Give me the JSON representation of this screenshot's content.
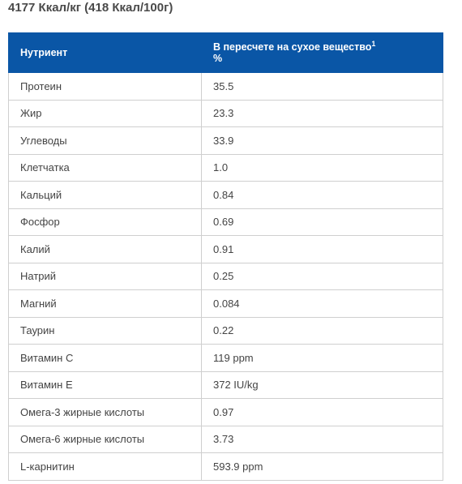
{
  "header": {
    "title": "4177 Ккал/кг (418 Ккал/100г)"
  },
  "table": {
    "columns": [
      "Нутриент",
      "В пересчете на сухое вещество"
    ],
    "column_note": "1",
    "column_unit": "%",
    "rows": [
      [
        "Протеин",
        "35.5"
      ],
      [
        "Жир",
        "23.3"
      ],
      [
        "Углеводы",
        "33.9"
      ],
      [
        "Клетчатка",
        "1.0"
      ],
      [
        "Кальций",
        "0.84"
      ],
      [
        "Фосфор",
        "0.69"
      ],
      [
        "Калий",
        "0.91"
      ],
      [
        "Натрий",
        "0.25"
      ],
      [
        "Магний",
        "0.084"
      ],
      [
        "Таурин",
        "0.22"
      ],
      [
        "Витамин C",
        "119 ppm"
      ],
      [
        "Витамин E",
        "372 IU/kg"
      ],
      [
        "Омега-3 жирные кислоты",
        "0.97"
      ],
      [
        "Омега-6 жирные кислоты",
        "3.73"
      ],
      [
        "L-карнитин",
        "593.9 ppm"
      ]
    ]
  }
}
